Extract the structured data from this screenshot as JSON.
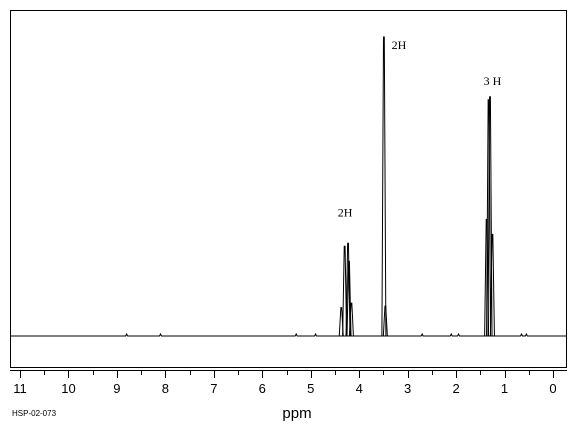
{
  "chart_data": {
    "type": "line",
    "xlabel": "ppm",
    "xlim": [
      11.0,
      -0.3
    ],
    "x_ticks": [
      11,
      10,
      9,
      8,
      7,
      6,
      5,
      4,
      3,
      2,
      1,
      0
    ],
    "tick_labels": [
      "11",
      "10",
      "9",
      "8",
      "7",
      "6",
      "5",
      "4",
      "3",
      "2",
      "1",
      "0"
    ],
    "ylim": [
      -0.06,
      1.0
    ],
    "grid": false,
    "footer_id": "HSP-02-073",
    "series": [
      {
        "peaks": [
          {
            "ppm": 4.37,
            "height": 0.095
          },
          {
            "ppm": 4.3,
            "height": 0.3
          },
          {
            "ppm": 4.23,
            "height": 0.31
          },
          {
            "ppm": 4.21,
            "height": 0.25
          },
          {
            "ppm": 4.16,
            "height": 0.11
          },
          {
            "ppm": 3.49,
            "height": 1.0
          },
          {
            "ppm": 3.46,
            "height": 0.1
          },
          {
            "ppm": 1.37,
            "height": 0.39
          },
          {
            "ppm": 1.33,
            "height": 0.79
          },
          {
            "ppm": 1.3,
            "height": 0.8
          },
          {
            "ppm": 1.25,
            "height": 0.34
          }
        ]
      }
    ],
    "annotations": [
      {
        "text": "2H",
        "ppm": 4.29,
        "height": 0.4
      },
      {
        "text": "2H",
        "ppm": 3.18,
        "height": 0.96
      },
      {
        "text": "3 H",
        "ppm": 1.25,
        "height": 0.84
      }
    ]
  }
}
